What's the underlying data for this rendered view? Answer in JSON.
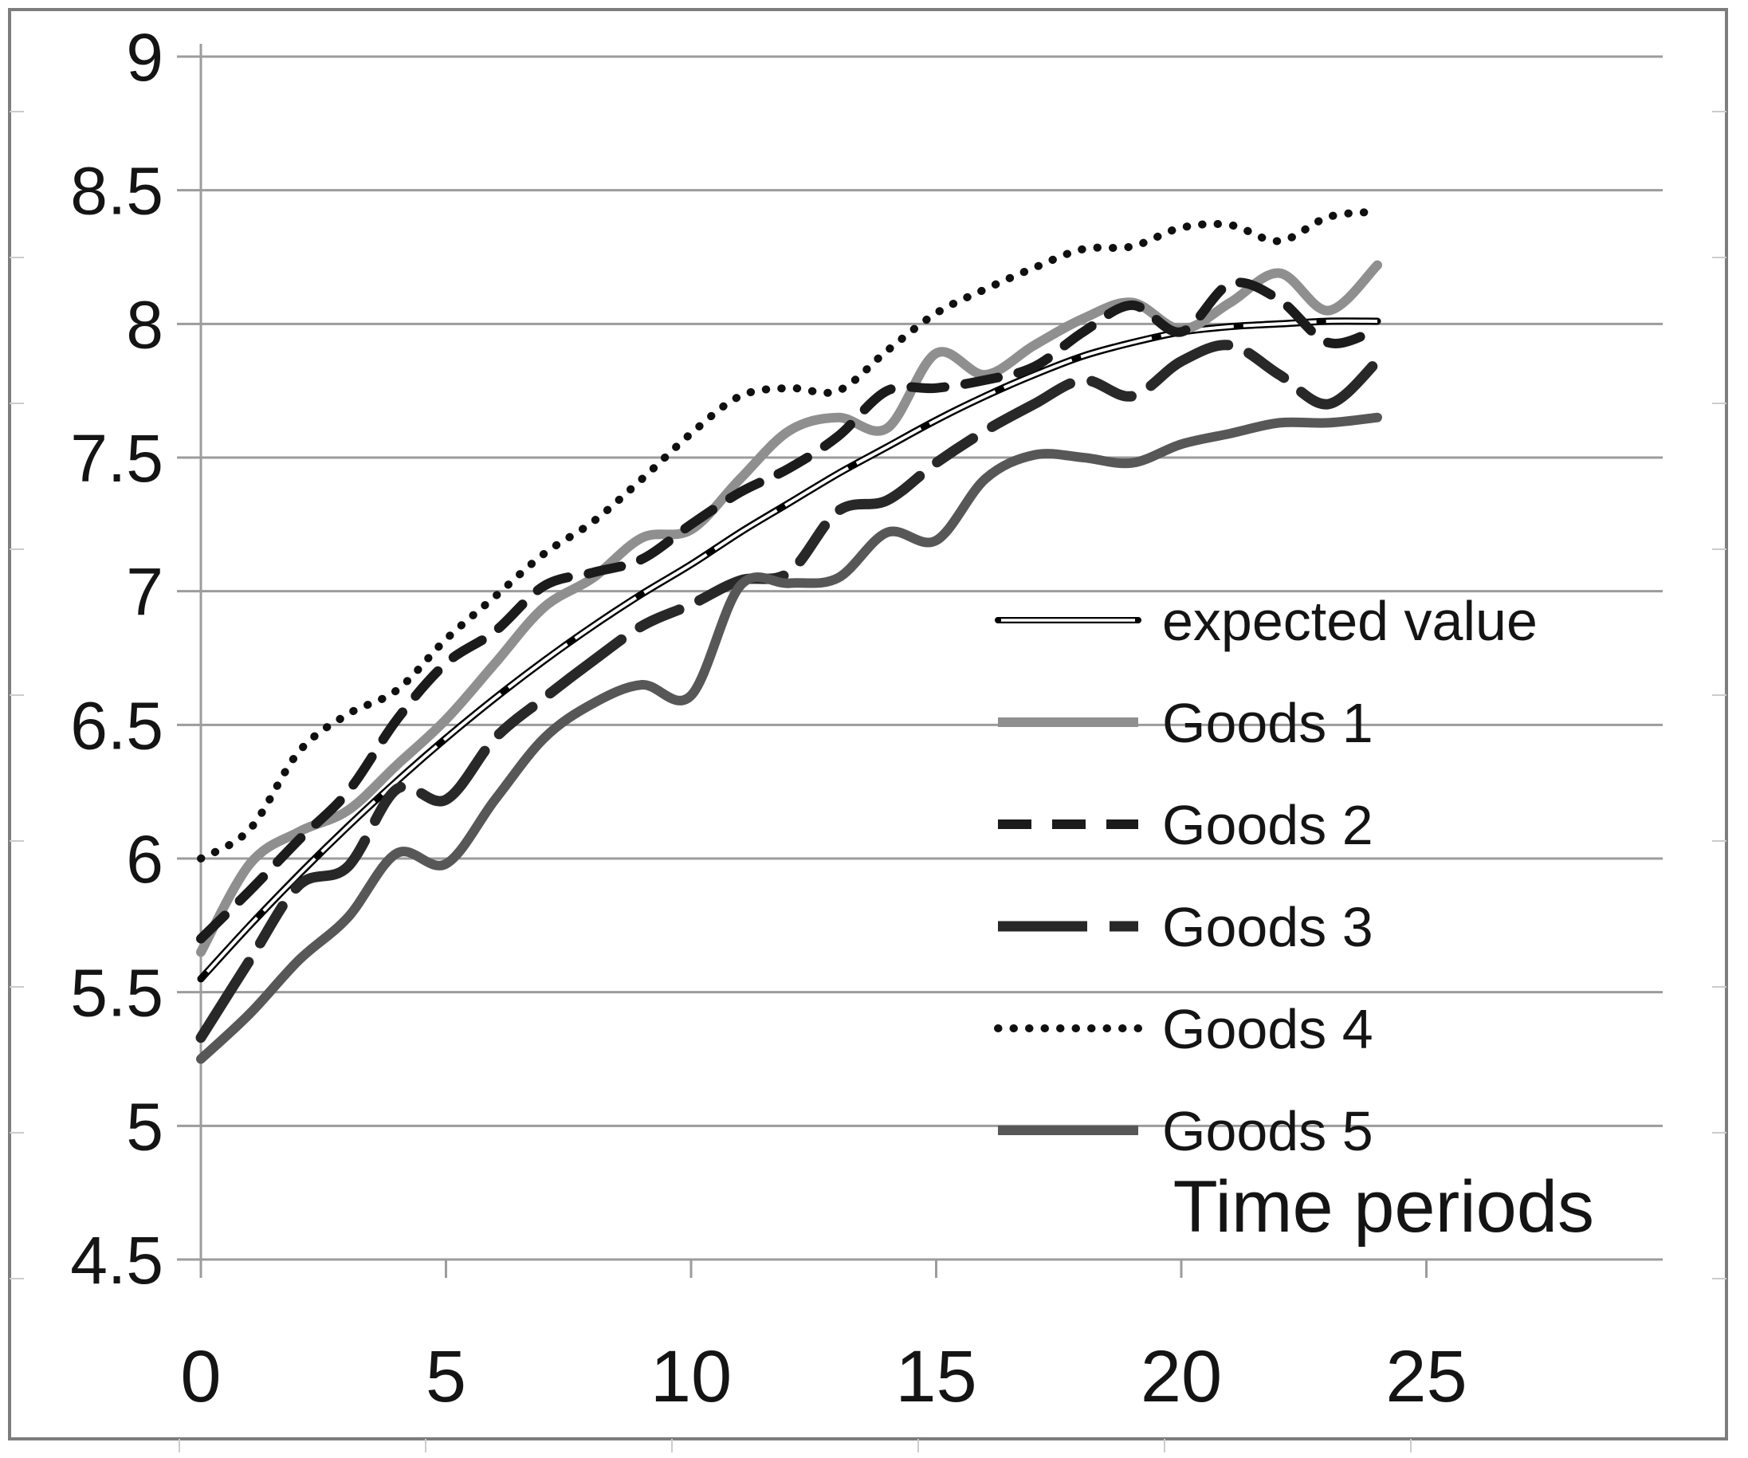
{
  "figure": {
    "kind": "scanned-line-chart-figure",
    "background": "#ffffff",
    "frame_color": "#7d7d7d",
    "gridline_color": "#9c9c9c",
    "text_color": "#141414"
  },
  "chart_data": {
    "type": "line",
    "title": "",
    "xlabel": "Time periods",
    "ylabel": "",
    "grid": "horizontal",
    "legend_position": "inside-right",
    "xlim": [
      0,
      29.8
    ],
    "ylim": [
      4.5,
      9
    ],
    "x": [
      0,
      1,
      2,
      3,
      4,
      5,
      6,
      7,
      8,
      9,
      10,
      11,
      12,
      13,
      14,
      15,
      16,
      17,
      18,
      19,
      20,
      21,
      22,
      23,
      24
    ],
    "x_ticks": [
      0,
      5,
      10,
      15,
      20,
      25
    ],
    "x_tick_labels": [
      "0",
      "5",
      "10",
      "15",
      "20",
      "25"
    ],
    "y_ticks": [
      4.5,
      5,
      5.5,
      6,
      6.5,
      7,
      7.5,
      8,
      8.5,
      9
    ],
    "y_tick_labels": [
      "4.5",
      "5",
      "5.5",
      "6",
      "6.5",
      "7",
      "7.5",
      "8",
      "8.5",
      "9"
    ],
    "series": [
      {
        "name": "expected value",
        "style": "double-line",
        "color": "#000000",
        "core_color": "#ffffff",
        "width": 9,
        "values": [
          5.55,
          5.75,
          5.94,
          6.12,
          6.29,
          6.45,
          6.6,
          6.74,
          6.87,
          6.99,
          7.1,
          7.22,
          7.33,
          7.44,
          7.54,
          7.64,
          7.73,
          7.81,
          7.88,
          7.93,
          7.97,
          7.99,
          8.0,
          8.01,
          8.01
        ]
      },
      {
        "name": "Goods 1",
        "style": "solid",
        "color": "#8f8f8f",
        "width": 12,
        "values": [
          5.65,
          5.98,
          6.1,
          6.18,
          6.35,
          6.52,
          6.73,
          6.94,
          7.05,
          7.2,
          7.23,
          7.42,
          7.6,
          7.65,
          7.61,
          7.89,
          7.81,
          7.92,
          8.02,
          8.08,
          7.98,
          8.08,
          8.19,
          8.05,
          8.22
        ]
      },
      {
        "name": "Goods 2",
        "style": "dashed",
        "color": "#1b1b1b",
        "width": 12,
        "dash": "42 26",
        "values": [
          5.7,
          5.88,
          6.07,
          6.25,
          6.52,
          6.73,
          6.85,
          7.02,
          7.07,
          7.12,
          7.25,
          7.37,
          7.46,
          7.58,
          7.75,
          7.76,
          7.79,
          7.84,
          7.97,
          8.07,
          7.97,
          8.15,
          8.09,
          7.93,
          7.98
        ]
      },
      {
        "name": "Goods 3",
        "style": "long-dash",
        "color": "#282828",
        "width": 13,
        "dash": "112 28 54 28",
        "values": [
          5.33,
          5.62,
          5.9,
          5.97,
          6.26,
          6.22,
          6.45,
          6.6,
          6.74,
          6.87,
          6.95,
          7.04,
          7.07,
          7.3,
          7.34,
          7.48,
          7.6,
          7.7,
          7.79,
          7.73,
          7.86,
          7.92,
          7.81,
          7.7,
          7.86
        ]
      },
      {
        "name": "Goods 4",
        "style": "dotted",
        "color": "#101010",
        "width": 10,
        "dash": "0.5 19",
        "values": [
          6.0,
          6.11,
          6.4,
          6.54,
          6.63,
          6.82,
          6.98,
          7.14,
          7.26,
          7.42,
          7.59,
          7.73,
          7.76,
          7.75,
          7.9,
          8.04,
          8.13,
          8.21,
          8.28,
          8.29,
          8.36,
          8.37,
          8.31,
          8.4,
          8.42
        ]
      },
      {
        "name": "Goods 5",
        "style": "solid",
        "color": "#575757",
        "width": 12,
        "values": [
          5.25,
          5.42,
          5.62,
          5.78,
          6.02,
          5.98,
          6.22,
          6.45,
          6.58,
          6.65,
          6.61,
          7.02,
          7.03,
          7.05,
          7.22,
          7.19,
          7.42,
          7.51,
          7.5,
          7.48,
          7.55,
          7.59,
          7.63,
          7.63,
          7.65
        ]
      }
    ]
  }
}
